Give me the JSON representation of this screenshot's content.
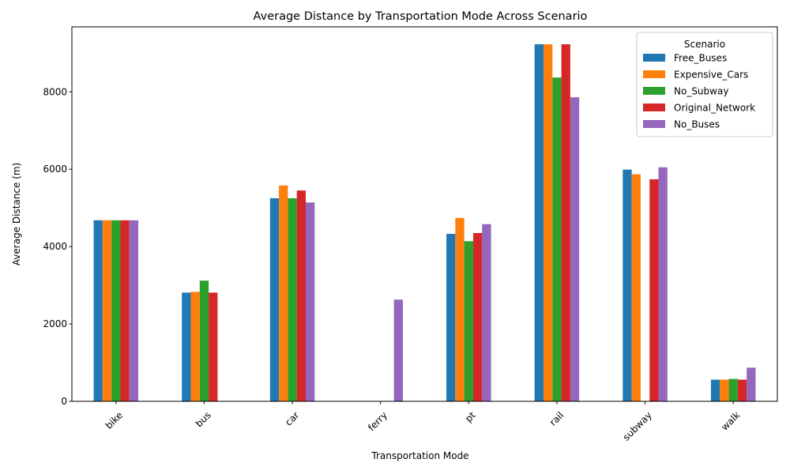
{
  "chart_data": {
    "type": "bar",
    "title": "Average Distance by Transportation Mode Across Scenario",
    "xlabel": "Transportation Mode",
    "ylabel": "Average Distance (m)",
    "categories": [
      "bike",
      "bus",
      "car",
      "ferry",
      "pt",
      "rail",
      "subway",
      "walk"
    ],
    "ylim": [
      0,
      9680
    ],
    "yticks": [
      0,
      2000,
      4000,
      6000,
      8000
    ],
    "grid": false,
    "legend": {
      "title": "Scenario",
      "placement": "top-right"
    },
    "series": [
      {
        "name": "Free_Buses",
        "color": "#1f77b4",
        "values": [
          4680,
          2810,
          5250,
          null,
          4330,
          9230,
          5990,
          560
        ]
      },
      {
        "name": "Expensive_Cars",
        "color": "#ff7f0e",
        "values": [
          4680,
          2830,
          5580,
          null,
          4740,
          9230,
          5870,
          560
        ]
      },
      {
        "name": "No_Subway",
        "color": "#2ca02c",
        "values": [
          4680,
          3120,
          5250,
          null,
          4140,
          8370,
          null,
          580
        ]
      },
      {
        "name": "Original_Network",
        "color": "#d62728",
        "values": [
          4680,
          2810,
          5450,
          null,
          4350,
          9230,
          5740,
          560
        ]
      },
      {
        "name": "No_Buses",
        "color": "#9467bd",
        "values": [
          4680,
          null,
          5140,
          2630,
          4580,
          7860,
          6050,
          870
        ]
      }
    ]
  }
}
